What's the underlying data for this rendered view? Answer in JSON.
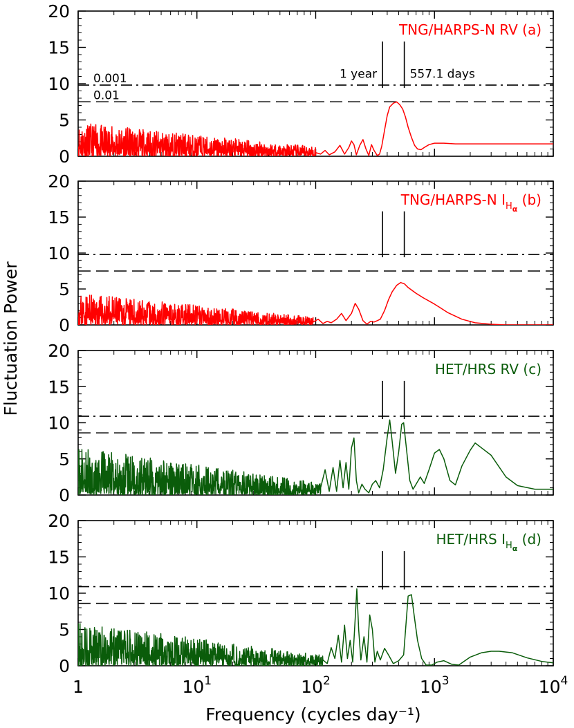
{
  "figure": {
    "xlabel": "Frequency (cycles day⁻¹)",
    "ylabel": "Fluctuation Power"
  },
  "chart_data": [
    {
      "type": "line",
      "title": "TNG/HARPS-N RV (a)",
      "label_main": "TNG/HARPS-N RV",
      "label_tag": "(a)",
      "label_has_halpha": false,
      "color": "#ff0000",
      "xscale": "log",
      "xlim": [
        1,
        10000
      ],
      "ylim": [
        0,
        20
      ],
      "yticks": [
        0,
        5,
        10,
        15,
        20
      ],
      "fap_levels": [
        {
          "fap": "0.001",
          "power": 9.8,
          "style": "dash-dot"
        },
        {
          "fap": "0.01",
          "power": 7.5,
          "style": "dashed"
        }
      ],
      "fap_labels": [
        "0.001",
        "0.01"
      ],
      "markers": [
        {
          "label": "1 year",
          "period_days": 365.25
        },
        {
          "label": "557.1 days",
          "period_days": 557.1
        }
      ],
      "noise": {
        "x_end": 100,
        "amp_start": 4.2,
        "amp_end": 1.2,
        "seed": 11
      },
      "series": [
        {
          "x": [
            100,
            110,
            120,
            130,
            145,
            160,
            175,
            190,
            200,
            210,
            220,
            235,
            250,
            265,
            280,
            295,
            310,
            330,
            345,
            360,
            380,
            400,
            420,
            450,
            480,
            510,
            540,
            570,
            600,
            640,
            680,
            720,
            770,
            820,
            900,
            1000,
            1200,
            1500,
            2000,
            3000,
            5000,
            10000
          ],
          "y": [
            0.5,
            0.3,
            0.8,
            0.2,
            0.6,
            1.5,
            0.3,
            1.2,
            2.1,
            1.6,
            0.2,
            1.5,
            2.3,
            1.0,
            0.1,
            1.6,
            0.8,
            0.1,
            0.3,
            1.4,
            3.6,
            5.6,
            6.8,
            7.3,
            7.5,
            7.1,
            6.5,
            5.4,
            4.0,
            2.6,
            1.5,
            1.0,
            0.9,
            1.2,
            1.6,
            1.8,
            1.8,
            1.7,
            1.7,
            1.7,
            1.7,
            1.7
          ]
        }
      ]
    },
    {
      "type": "line",
      "title": "TNG/HARPS-N I_Hα (b)",
      "label_main": "TNG/HARPS-N I",
      "label_tag": "(b)",
      "label_has_halpha": true,
      "color": "#ff0000",
      "xscale": "log",
      "xlim": [
        1,
        10000
      ],
      "ylim": [
        0,
        20
      ],
      "yticks": [
        0,
        5,
        10,
        15,
        20
      ],
      "fap_levels": [
        {
          "fap": "0.001",
          "power": 9.8,
          "style": "dash-dot"
        },
        {
          "fap": "0.01",
          "power": 7.5,
          "style": "dashed"
        }
      ],
      "fap_labels": [],
      "markers": [
        {
          "label": "",
          "period_days": 365.25
        },
        {
          "label": "",
          "period_days": 557.1
        }
      ],
      "noise": {
        "x_end": 95,
        "amp_start": 4.0,
        "amp_end": 1.0,
        "seed": 23
      },
      "series": [
        {
          "x": [
            95,
            105,
            115,
            125,
            135,
            150,
            165,
            180,
            200,
            215,
            230,
            250,
            270,
            290,
            310,
            330,
            350,
            380,
            410,
            440,
            480,
            520,
            560,
            600,
            700,
            800,
            1000,
            1300,
            1700,
            2200,
            3000,
            4000,
            6000,
            10000
          ],
          "y": [
            0.4,
            0.8,
            0.2,
            0.5,
            0.3,
            0.8,
            1.6,
            0.6,
            1.6,
            3.0,
            2.2,
            0.6,
            0.1,
            0.5,
            0.4,
            0.6,
            0.8,
            2.0,
            3.5,
            4.6,
            5.5,
            5.9,
            5.7,
            5.2,
            4.4,
            3.8,
            2.9,
            1.7,
            0.8,
            0.3,
            0.1,
            0.0,
            0.0,
            0.0
          ]
        }
      ]
    },
    {
      "type": "line",
      "title": "HET/HRS RV (c)",
      "label_main": "HET/HRS RV",
      "label_tag": "(c)",
      "label_has_halpha": false,
      "color": "#0a5c0a",
      "xscale": "log",
      "xlim": [
        1,
        10000
      ],
      "ylim": [
        0,
        20
      ],
      "yticks": [
        0,
        5,
        10,
        15,
        20
      ],
      "fap_levels": [
        {
          "fap": "0.001",
          "power": 10.9,
          "style": "dash-dot"
        },
        {
          "fap": "0.01",
          "power": 8.6,
          "style": "dashed"
        }
      ],
      "fap_labels": [],
      "markers": [
        {
          "label": "",
          "period_days": 365.25
        },
        {
          "label": "",
          "period_days": 557.1
        }
      ],
      "noise": {
        "x_end": 110,
        "amp_start": 6.0,
        "amp_end": 1.5,
        "seed": 37
      },
      "series": [
        {
          "x": [
            110,
            120,
            130,
            140,
            150,
            160,
            170,
            180,
            190,
            200,
            210,
            220,
            230,
            245,
            260,
            280,
            300,
            320,
            345,
            370,
            400,
            420,
            440,
            470,
            500,
            530,
            550,
            580,
            620,
            660,
            700,
            760,
            820,
            900,
            1000,
            1100,
            1200,
            1350,
            1500,
            1700,
            2000,
            2200,
            2500,
            3000,
            4000,
            5000,
            7000,
            10000
          ],
          "y": [
            1.0,
            3.5,
            0.5,
            3.8,
            0.5,
            4.8,
            1.0,
            4.5,
            0.8,
            6.5,
            7.9,
            2.0,
            0.3,
            1.5,
            0.8,
            0.3,
            1.5,
            2.0,
            1.0,
            3.5,
            8.0,
            10.4,
            7.5,
            3.0,
            6.0,
            9.8,
            10.0,
            6.5,
            2.0,
            0.8,
            1.5,
            2.5,
            1.6,
            3.5,
            5.8,
            6.3,
            5.0,
            2.0,
            1.4,
            4.0,
            6.2,
            7.2,
            6.5,
            5.5,
            2.5,
            1.3,
            0.8,
            0.8
          ]
        }
      ]
    },
    {
      "type": "line",
      "title": "HET/HRS I_Hα (d)",
      "label_main": "HET/HRS I",
      "label_tag": "(d)",
      "label_has_halpha": true,
      "color": "#0a5c0a",
      "xscale": "log",
      "xlim": [
        1,
        10000
      ],
      "ylim": [
        0,
        20
      ],
      "yticks": [
        0,
        5,
        10,
        15,
        20
      ],
      "fap_levels": [
        {
          "fap": "0.001",
          "power": 10.9,
          "style": "dash-dot"
        },
        {
          "fap": "0.01",
          "power": 8.6,
          "style": "dashed"
        }
      ],
      "fap_labels": [],
      "markers": [
        {
          "label": "",
          "period_days": 365.25
        },
        {
          "label": "",
          "period_days": 557.1
        }
      ],
      "noise": {
        "x_end": 115,
        "amp_start": 5.5,
        "amp_end": 1.3,
        "seed": 53
      },
      "series": [
        {
          "x": [
            115,
            125,
            135,
            145,
            155,
            165,
            175,
            185,
            195,
            205,
            215,
            222,
            230,
            240,
            255,
            270,
            285,
            300,
            315,
            330,
            350,
            380,
            410,
            450,
            500,
            550,
            600,
            640,
            680,
            720,
            780,
            850,
            950,
            1050,
            1200,
            1400,
            1600,
            2000,
            2500,
            3000,
            3500,
            4500,
            6000,
            8000,
            10000
          ],
          "y": [
            0.8,
            0.3,
            2.5,
            1.0,
            4.2,
            0.5,
            5.6,
            1.0,
            3.5,
            0.5,
            6.5,
            10.6,
            5.0,
            0.8,
            4.0,
            0.5,
            7.0,
            5.0,
            0.5,
            2.0,
            0.8,
            2.4,
            1.5,
            0.3,
            0.7,
            1.5,
            9.6,
            9.8,
            6.5,
            3.5,
            1.0,
            0.1,
            0.1,
            0.5,
            0.7,
            0.2,
            0.1,
            1.2,
            1.8,
            2.0,
            2.0,
            1.8,
            1.1,
            0.6,
            0.4
          ]
        }
      ]
    }
  ]
}
